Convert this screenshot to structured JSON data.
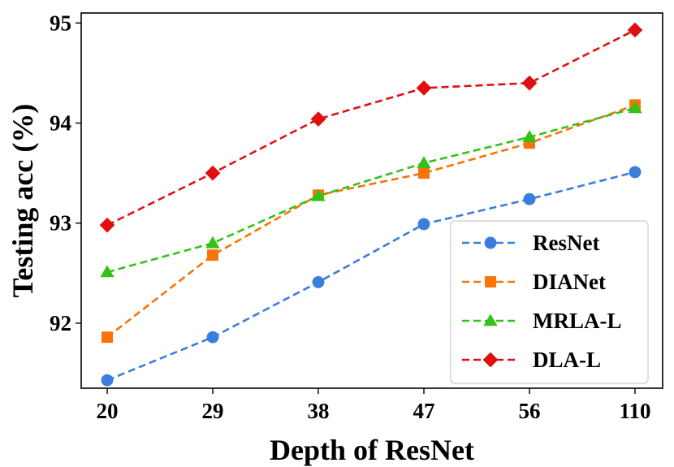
{
  "chart_data": {
    "type": "line",
    "xlabel": "Depth of ResNet",
    "ylabel": "Testing acc (%)",
    "categories": [
      "20",
      "29",
      "38",
      "47",
      "56",
      "110"
    ],
    "ylim": [
      91.35,
      95.1
    ],
    "yticks": [
      92,
      93,
      94,
      95
    ],
    "legend_position": "bottom-right",
    "series": [
      {
        "name": "ResNet",
        "color": "#3b7ddd",
        "marker": "circle",
        "values": [
          91.43,
          91.86,
          92.41,
          92.99,
          93.24,
          93.51
        ]
      },
      {
        "name": "DIANet",
        "color": "#f97306",
        "marker": "square",
        "values": [
          91.86,
          92.68,
          93.28,
          93.5,
          93.8,
          94.18
        ]
      },
      {
        "name": "MRLA-L",
        "color": "#35c11a",
        "marker": "triangle",
        "values": [
          92.51,
          92.8,
          93.27,
          93.6,
          93.86,
          94.15
        ]
      },
      {
        "name": "DLA-L",
        "color": "#e01010",
        "marker": "diamond",
        "values": [
          92.98,
          93.5,
          94.04,
          94.35,
          94.4,
          94.93
        ]
      }
    ]
  }
}
